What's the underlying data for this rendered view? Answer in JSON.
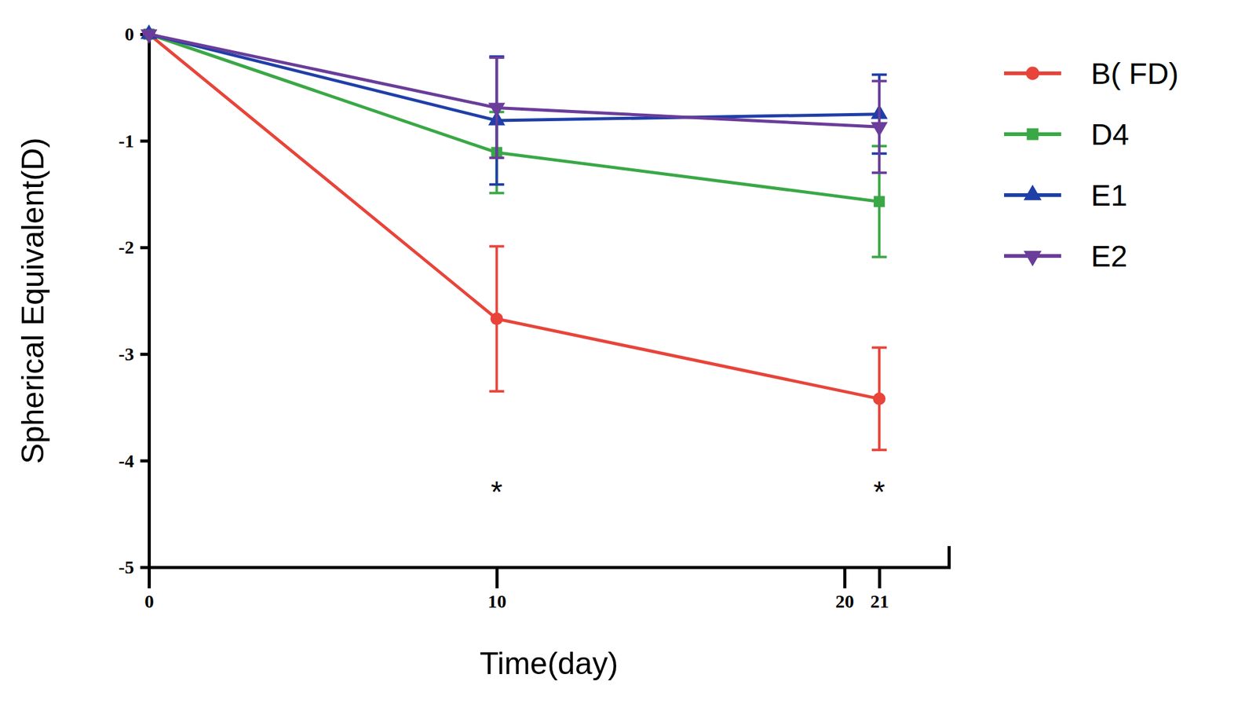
{
  "chart_data": {
    "type": "line",
    "x_label": "Time(day)",
    "y_label": "Spherical Equivalent(D)",
    "x": [
      0,
      10,
      21
    ],
    "xlim": [
      0,
      23
    ],
    "xticks": [
      0,
      10,
      20,
      21
    ],
    "ylim": [
      -5,
      0
    ],
    "yticks": [
      -5,
      -4,
      -3,
      -2,
      -1,
      0
    ],
    "legend": "right",
    "series": [
      {
        "name": "B( FD)",
        "color": "#e8443a",
        "marker": "circle",
        "values": [
          0,
          -2.67,
          -3.42
        ],
        "errors": [
          0,
          0.68,
          0.48
        ]
      },
      {
        "name": "D4",
        "color": "#3aa846",
        "marker": "square",
        "values": [
          0,
          -1.11,
          -1.57
        ],
        "errors": [
          0,
          0.38,
          0.52
        ]
      },
      {
        "name": "E1",
        "color": "#1f3fa8",
        "marker": "triangle",
        "values": [
          0,
          -0.81,
          -0.75
        ],
        "errors": [
          0,
          0.6,
          0.37
        ]
      },
      {
        "name": "E2",
        "color": "#6a3d9a",
        "marker": "triangle-down",
        "values": [
          0,
          -0.69,
          -0.87
        ],
        "errors": [
          0,
          0.47,
          0.43
        ]
      }
    ],
    "annotations": [
      {
        "text": "*",
        "x": 10,
        "y": -4.25
      },
      {
        "text": "*",
        "x": 21,
        "y": -4.25
      }
    ]
  }
}
